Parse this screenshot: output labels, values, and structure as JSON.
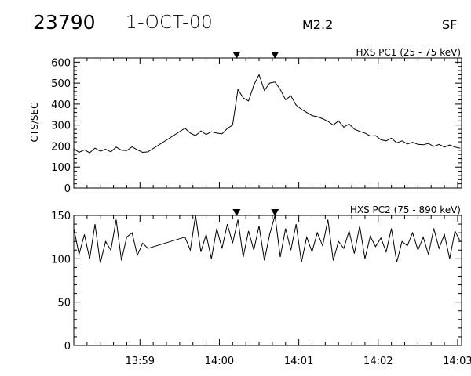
{
  "header": {
    "event_number": "23790",
    "date": "1-OCT-00",
    "goes_class": "M2.2",
    "flag": "SF"
  },
  "chart_data": [
    {
      "type": "line",
      "title": "HXS PC1 (25 - 75 keV)",
      "ylabel": "CTS/SEC",
      "ylim": [
        0,
        620
      ],
      "yticks": [
        0,
        100,
        200,
        300,
        400,
        500,
        600
      ],
      "xlim": [
        "13:58:10",
        "14:03:03"
      ],
      "xticks": [
        "13:59",
        "14:00",
        "14:01",
        "14:02",
        "14:03"
      ],
      "markers": [
        "14:00:13",
        "14:00:42"
      ],
      "grid": false,
      "series": [
        {
          "x": [
            "13:58:10",
            "13:58:14",
            "13:58:18",
            "13:58:22",
            "13:58:26",
            "13:58:30",
            "13:58:34",
            "13:58:38",
            "13:58:42",
            "13:58:46",
            "13:58:50",
            "13:58:54",
            "13:58:58",
            "13:59:02",
            "13:59:06",
            "13:59:34",
            "13:59:38",
            "13:59:42",
            "13:59:46",
            "13:59:50",
            "13:59:54",
            "13:59:58",
            "14:00:02",
            "14:00:06",
            "14:00:10",
            "14:00:14",
            "14:00:18",
            "14:00:22",
            "14:00:26",
            "14:00:30",
            "14:00:34",
            "14:00:38",
            "14:00:42",
            "14:00:46",
            "14:00:50",
            "14:00:54",
            "14:00:58",
            "14:01:02",
            "14:01:06",
            "14:01:10",
            "14:01:14",
            "14:01:18",
            "14:01:22",
            "14:01:26",
            "14:01:30",
            "14:01:34",
            "14:01:38",
            "14:01:42",
            "14:01:46",
            "14:01:50",
            "14:01:54",
            "14:01:58",
            "14:02:02",
            "14:02:06",
            "14:02:10",
            "14:02:14",
            "14:02:18",
            "14:02:22",
            "14:02:26",
            "14:02:30",
            "14:02:34",
            "14:02:38",
            "14:02:42",
            "14:02:46",
            "14:02:50",
            "14:02:54",
            "14:02:58",
            "14:03:02"
          ],
          "values": [
            188,
            170,
            182,
            168,
            190,
            175,
            185,
            172,
            195,
            180,
            178,
            196,
            182,
            170,
            172,
            285,
            262,
            250,
            272,
            255,
            268,
            262,
            258,
            284,
            300,
            470,
            430,
            415,
            490,
            540,
            465,
            500,
            505,
            470,
            420,
            440,
            395,
            375,
            360,
            345,
            340,
            330,
            318,
            300,
            320,
            290,
            305,
            280,
            270,
            262,
            248,
            250,
            230,
            225,
            238,
            215,
            225,
            210,
            218,
            208,
            206,
            212,
            198,
            208,
            195,
            205,
            195,
            190
          ]
        }
      ]
    },
    {
      "type": "line",
      "title": "HXS PC2 (75 - 890 keV)",
      "ylabel": "",
      "ylim": [
        0,
        150
      ],
      "yticks": [
        0,
        50,
        100,
        150
      ],
      "xlim": [
        "13:58:10",
        "14:03:03"
      ],
      "xticks": [
        "13:59",
        "14:00",
        "14:01",
        "14:02",
        "14:03"
      ],
      "markers": [
        "14:00:13",
        "14:00:42"
      ],
      "grid": false,
      "series": [
        {
          "x": [
            "13:58:10",
            "13:58:14",
            "13:58:18",
            "13:58:22",
            "13:58:26",
            "13:58:30",
            "13:58:34",
            "13:58:38",
            "13:58:42",
            "13:58:46",
            "13:58:50",
            "13:58:54",
            "13:58:58",
            "13:59:02",
            "13:59:06",
            "13:59:34",
            "13:59:38",
            "13:59:42",
            "13:59:46",
            "13:59:50",
            "13:59:54",
            "13:59:58",
            "14:00:02",
            "14:00:06",
            "14:00:10",
            "14:00:14",
            "14:00:18",
            "14:00:22",
            "14:00:26",
            "14:00:30",
            "14:00:34",
            "14:00:38",
            "14:00:42",
            "14:00:46",
            "14:00:50",
            "14:00:54",
            "14:00:58",
            "14:01:02",
            "14:01:06",
            "14:01:10",
            "14:01:14",
            "14:01:18",
            "14:01:22",
            "14:01:26",
            "14:01:30",
            "14:01:34",
            "14:01:38",
            "14:01:42",
            "14:01:46",
            "14:01:50",
            "14:01:54",
            "14:01:58",
            "14:02:02",
            "14:02:06",
            "14:02:10",
            "14:02:14",
            "14:02:18",
            "14:02:22",
            "14:02:26",
            "14:02:30",
            "14:02:34",
            "14:02:38",
            "14:02:42",
            "14:02:46",
            "14:02:50",
            "14:02:54",
            "14:02:58",
            "14:03:02"
          ],
          "values": [
            135,
            105,
            128,
            100,
            140,
            95,
            120,
            110,
            145,
            98,
            125,
            130,
            104,
            118,
            112,
            125,
            110,
            150,
            108,
            128,
            100,
            135,
            112,
            140,
            118,
            145,
            102,
            132,
            110,
            138,
            98,
            128,
            150,
            102,
            135,
            110,
            140,
            96,
            125,
            108,
            130,
            115,
            145,
            98,
            120,
            112,
            132,
            106,
            138,
            100,
            126,
            114,
            124,
            108,
            135,
            96,
            120,
            115,
            130,
            110,
            125,
            105,
            135,
            112,
            128,
            100,
            132,
            120
          ]
        }
      ]
    }
  ]
}
